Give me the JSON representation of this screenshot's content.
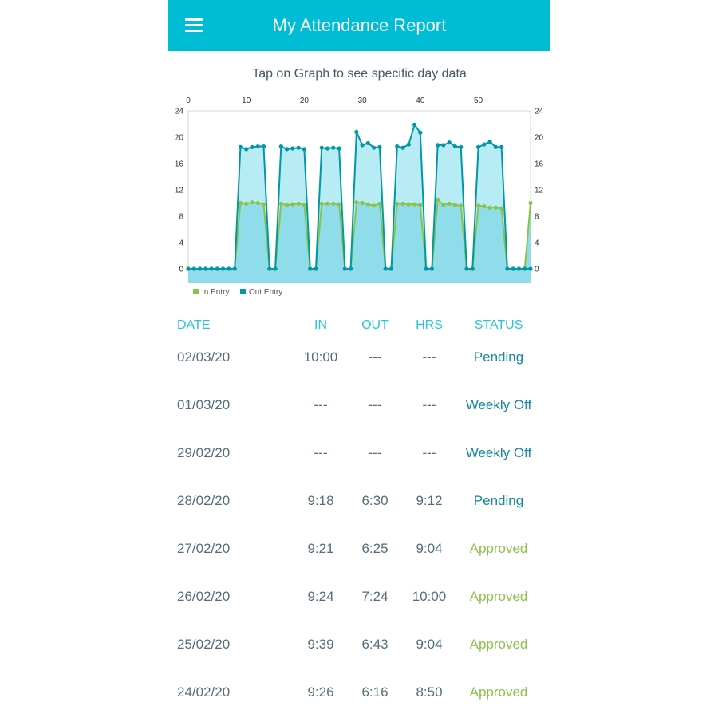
{
  "app": {
    "title": "My Attendance Report"
  },
  "chart_hint": "Tap on Graph to see specific day data",
  "chart_data": {
    "type": "area",
    "x": [
      0,
      1,
      2,
      3,
      4,
      5,
      6,
      7,
      8,
      9,
      10,
      11,
      12,
      13,
      14,
      15,
      16,
      17,
      18,
      19,
      20,
      21,
      22,
      23,
      24,
      25,
      26,
      27,
      28,
      29,
      30,
      31,
      32,
      33,
      34,
      35,
      36,
      37,
      38,
      39,
      40,
      41,
      42,
      43,
      44,
      45,
      46,
      47,
      48,
      49,
      50,
      51,
      52,
      53,
      54,
      55,
      56,
      57,
      58,
      59
    ],
    "series": [
      {
        "name": "In Entry",
        "color": "#8BC34A",
        "values": [
          0,
          0,
          0,
          0,
          0,
          0,
          0,
          0,
          0,
          10,
          9.9,
          10.1,
          10,
          9.8,
          0,
          0,
          9.9,
          9.7,
          9.8,
          9.9,
          9.7,
          0,
          0,
          9.9,
          9.9,
          9.9,
          9.8,
          0,
          0,
          10.1,
          10,
          9.8,
          9.6,
          9.9,
          0,
          0,
          9.9,
          9.9,
          9.8,
          9.8,
          9.7,
          0,
          0,
          10.5,
          9.7,
          9.9,
          9.7,
          9.6,
          0,
          0,
          9.6,
          9.5,
          9.3,
          9.3,
          9.2,
          0,
          0,
          0,
          0,
          10
        ]
      },
      {
        "name": "Out Entry",
        "color": "#0097A7",
        "values": [
          0,
          0,
          0,
          0,
          0,
          0,
          0,
          0,
          0,
          18.5,
          18.2,
          18.5,
          18.6,
          18.6,
          0,
          0,
          18.6,
          18.2,
          18.3,
          18.4,
          18.2,
          0,
          0,
          18.4,
          18.3,
          18.4,
          18.3,
          0,
          0,
          20.8,
          18.8,
          19.1,
          18.4,
          18.5,
          0,
          0,
          18.6,
          18.4,
          18.9,
          21.9,
          20.7,
          0,
          0,
          18.8,
          18.8,
          19.2,
          18.6,
          18.5,
          0,
          0,
          18.5,
          18.9,
          19.3,
          18.5,
          18.5,
          0,
          0,
          0,
          0,
          0
        ]
      }
    ],
    "x_ticks": [
      0,
      10,
      20,
      30,
      40,
      50
    ],
    "y_ticks": [
      0,
      4,
      8,
      12,
      16,
      20,
      24
    ],
    "xlim": [
      0,
      59
    ],
    "ylim": [
      0,
      24
    ],
    "legend_position": "bottom-left",
    "grid": false
  },
  "table": {
    "headers": {
      "date": "DATE",
      "in": "IN",
      "out": "OUT",
      "hrs": "HRS",
      "status": "STATUS"
    },
    "rows": [
      {
        "date": "02/03/20",
        "in": "10:00",
        "out": "---",
        "hrs": "---",
        "status": "Pending",
        "kind": "pending"
      },
      {
        "date": "01/03/20",
        "in": "---",
        "out": "---",
        "hrs": "---",
        "status": "Weekly Off",
        "kind": "weeklyoff"
      },
      {
        "date": "29/02/20",
        "in": "---",
        "out": "---",
        "hrs": "---",
        "status": "Weekly Off",
        "kind": "weeklyoff"
      },
      {
        "date": "28/02/20",
        "in": "9:18",
        "out": "6:30",
        "hrs": "9:12",
        "status": "Pending",
        "kind": "pending"
      },
      {
        "date": "27/02/20",
        "in": "9:21",
        "out": "6:25",
        "hrs": "9:04",
        "status": "Approved",
        "kind": "approved"
      },
      {
        "date": "26/02/20",
        "in": "9:24",
        "out": "7:24",
        "hrs": "10:00",
        "status": "Approved",
        "kind": "approved"
      },
      {
        "date": "25/02/20",
        "in": "9:39",
        "out": "6:43",
        "hrs": "9:04",
        "status": "Approved",
        "kind": "approved"
      },
      {
        "date": "24/02/20",
        "in": "9:26",
        "out": "6:16",
        "hrs": "8:50",
        "status": "Approved",
        "kind": "approved"
      }
    ]
  }
}
